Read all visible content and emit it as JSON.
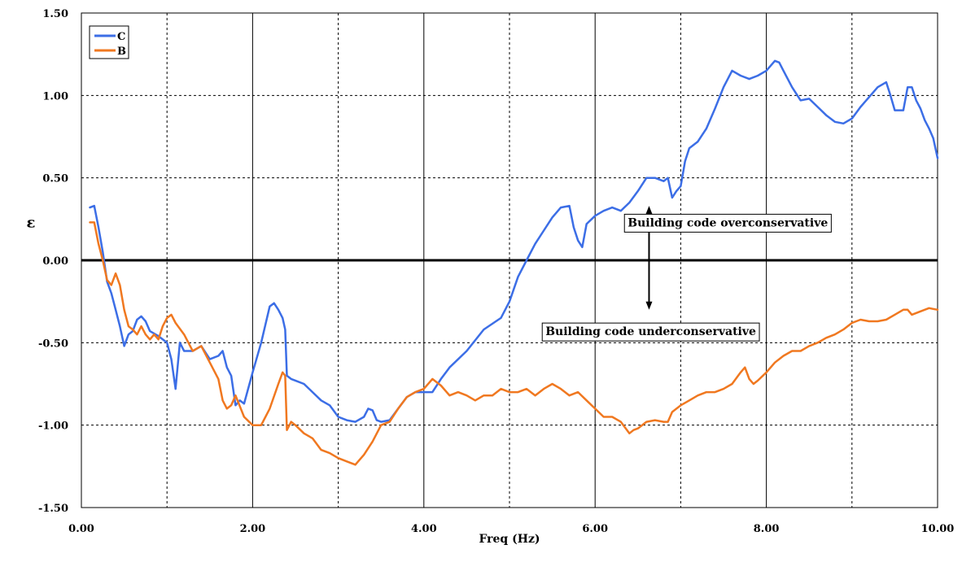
{
  "chart_data": {
    "type": "line",
    "xlabel": "Freq (Hz)",
    "ylabel": "ε",
    "xlim": [
      0,
      10
    ],
    "ylim": [
      -1.5,
      1.5
    ],
    "x_ticks": [
      0,
      1,
      2,
      3,
      4,
      5,
      6,
      7,
      8,
      9,
      10
    ],
    "x_tick_labels": [
      "0.00",
      "",
      "2.00",
      "",
      "4.00",
      "",
      "6.00",
      "",
      "8.00",
      "",
      "10.00"
    ],
    "y_ticks": [
      -1.5,
      -1.0,
      -0.5,
      0.0,
      0.5,
      1.0,
      1.5
    ],
    "y_tick_labels": [
      "-1.50",
      "-1.00",
      "-0.50",
      "0.00",
      "0.50",
      "1.00",
      "1.50"
    ],
    "grid": true,
    "legend_position": "top-left",
    "reference_line": {
      "y": 0.0,
      "color": "#000000"
    },
    "annotations": [
      {
        "text": "Building code overconservative",
        "x": 7.55,
        "y": 0.23
      },
      {
        "text": "Building code underconservative",
        "x": 6.65,
        "y": -0.43
      }
    ],
    "arrow": {
      "x": 6.63,
      "y_top": 0.33,
      "y_bottom": -0.3
    },
    "series": [
      {
        "name": "C",
        "color": "#3c6ee6",
        "x": [
          0.1,
          0.15,
          0.2,
          0.25,
          0.3,
          0.35,
          0.4,
          0.45,
          0.5,
          0.55,
          0.6,
          0.65,
          0.7,
          0.75,
          0.8,
          0.9,
          1.0,
          1.05,
          1.1,
          1.15,
          1.2,
          1.3,
          1.4,
          1.5,
          1.6,
          1.65,
          1.7,
          1.75,
          1.8,
          1.85,
          1.9,
          2.0,
          2.1,
          2.2,
          2.25,
          2.3,
          2.35,
          2.38,
          2.4,
          2.45,
          2.5,
          2.6,
          2.7,
          2.8,
          2.9,
          3.0,
          3.1,
          3.2,
          3.3,
          3.35,
          3.4,
          3.45,
          3.5,
          3.6,
          3.7,
          3.8,
          3.9,
          4.0,
          4.1,
          4.2,
          4.3,
          4.5,
          4.7,
          4.9,
          5.0,
          5.1,
          5.2,
          5.3,
          5.4,
          5.5,
          5.6,
          5.7,
          5.75,
          5.8,
          5.85,
          5.9,
          6.0,
          6.1,
          6.2,
          6.3,
          6.4,
          6.5,
          6.6,
          6.7,
          6.8,
          6.85,
          6.9,
          6.95,
          7.0,
          7.05,
          7.1,
          7.2,
          7.3,
          7.4,
          7.5,
          7.6,
          7.7,
          7.8,
          7.9,
          8.0,
          8.1,
          8.15,
          8.2,
          8.3,
          8.4,
          8.5,
          8.6,
          8.7,
          8.8,
          8.9,
          9.0,
          9.1,
          9.2,
          9.3,
          9.4,
          9.45,
          9.5,
          9.6,
          9.65,
          9.7,
          9.75,
          9.8,
          9.85,
          9.9,
          9.95,
          10.0
        ],
        "values": [
          0.32,
          0.33,
          0.2,
          0.05,
          -0.13,
          -0.2,
          -0.3,
          -0.4,
          -0.52,
          -0.45,
          -0.43,
          -0.36,
          -0.34,
          -0.37,
          -0.43,
          -0.46,
          -0.5,
          -0.6,
          -0.78,
          -0.5,
          -0.55,
          -0.55,
          -0.52,
          -0.6,
          -0.58,
          -0.55,
          -0.65,
          -0.7,
          -0.88,
          -0.85,
          -0.87,
          -0.68,
          -0.5,
          -0.28,
          -0.26,
          -0.3,
          -0.35,
          -0.42,
          -0.7,
          -0.72,
          -0.73,
          -0.75,
          -0.8,
          -0.85,
          -0.88,
          -0.95,
          -0.97,
          -0.98,
          -0.95,
          -0.9,
          -0.91,
          -0.97,
          -0.98,
          -0.97,
          -0.9,
          -0.83,
          -0.8,
          -0.8,
          -0.8,
          -0.72,
          -0.65,
          -0.55,
          -0.42,
          -0.35,
          -0.25,
          -0.1,
          0.0,
          0.1,
          0.18,
          0.26,
          0.32,
          0.33,
          0.2,
          0.12,
          0.08,
          0.22,
          0.27,
          0.3,
          0.32,
          0.3,
          0.35,
          0.42,
          0.5,
          0.5,
          0.48,
          0.5,
          0.38,
          0.42,
          0.45,
          0.6,
          0.68,
          0.72,
          0.8,
          0.92,
          1.05,
          1.15,
          1.12,
          1.1,
          1.12,
          1.15,
          1.21,
          1.2,
          1.15,
          1.05,
          0.97,
          0.98,
          0.93,
          0.88,
          0.84,
          0.83,
          0.86,
          0.93,
          0.99,
          1.05,
          1.08,
          1.0,
          0.91,
          0.91,
          1.05,
          1.05,
          0.97,
          0.92,
          0.85,
          0.8,
          0.74,
          0.62
        ]
      },
      {
        "name": "B",
        "color": "#f07820",
        "x": [
          0.1,
          0.15,
          0.2,
          0.25,
          0.3,
          0.35,
          0.4,
          0.45,
          0.5,
          0.55,
          0.6,
          0.65,
          0.7,
          0.75,
          0.8,
          0.85,
          0.9,
          0.95,
          1.0,
          1.05,
          1.1,
          1.2,
          1.3,
          1.4,
          1.5,
          1.6,
          1.65,
          1.7,
          1.75,
          1.8,
          1.9,
          2.0,
          2.1,
          2.15,
          2.2,
          2.3,
          2.35,
          2.38,
          2.4,
          2.45,
          2.5,
          2.6,
          2.7,
          2.8,
          2.9,
          3.0,
          3.1,
          3.2,
          3.3,
          3.4,
          3.5,
          3.6,
          3.7,
          3.8,
          3.9,
          4.0,
          4.1,
          4.2,
          4.3,
          4.4,
          4.5,
          4.6,
          4.7,
          4.8,
          4.9,
          5.0,
          5.1,
          5.2,
          5.3,
          5.4,
          5.5,
          5.6,
          5.7,
          5.8,
          5.9,
          6.0,
          6.1,
          6.2,
          6.3,
          6.4,
          6.45,
          6.5,
          6.6,
          6.7,
          6.8,
          6.85,
          6.9,
          7.0,
          7.1,
          7.2,
          7.3,
          7.4,
          7.5,
          7.6,
          7.7,
          7.75,
          7.8,
          7.85,
          7.9,
          8.0,
          8.1,
          8.2,
          8.3,
          8.4,
          8.5,
          8.6,
          8.7,
          8.8,
          8.9,
          9.0,
          9.1,
          9.2,
          9.3,
          9.4,
          9.5,
          9.6,
          9.65,
          9.7,
          9.8,
          9.9,
          10.0
        ],
        "values": [
          0.23,
          0.23,
          0.1,
          0.0,
          -0.12,
          -0.15,
          -0.08,
          -0.15,
          -0.3,
          -0.4,
          -0.42,
          -0.45,
          -0.4,
          -0.45,
          -0.48,
          -0.45,
          -0.48,
          -0.4,
          -0.35,
          -0.33,
          -0.38,
          -0.45,
          -0.55,
          -0.52,
          -0.62,
          -0.72,
          -0.85,
          -0.9,
          -0.88,
          -0.82,
          -0.95,
          -1.0,
          -1.0,
          -0.95,
          -0.9,
          -0.75,
          -0.68,
          -0.7,
          -1.03,
          -0.98,
          -1.0,
          -1.05,
          -1.08,
          -1.15,
          -1.17,
          -1.2,
          -1.22,
          -1.24,
          -1.18,
          -1.1,
          -1.0,
          -0.98,
          -0.9,
          -0.83,
          -0.8,
          -0.78,
          -0.72,
          -0.76,
          -0.82,
          -0.8,
          -0.82,
          -0.85,
          -0.82,
          -0.82,
          -0.78,
          -0.8,
          -0.8,
          -0.78,
          -0.82,
          -0.78,
          -0.75,
          -0.78,
          -0.82,
          -0.8,
          -0.85,
          -0.9,
          -0.95,
          -0.95,
          -0.98,
          -1.05,
          -1.03,
          -1.02,
          -0.98,
          -0.97,
          -0.98,
          -0.98,
          -0.92,
          -0.88,
          -0.85,
          -0.82,
          -0.8,
          -0.8,
          -0.78,
          -0.75,
          -0.68,
          -0.65,
          -0.72,
          -0.75,
          -0.73,
          -0.68,
          -0.62,
          -0.58,
          -0.55,
          -0.55,
          -0.52,
          -0.5,
          -0.47,
          -0.45,
          -0.42,
          -0.38,
          -0.36,
          -0.37,
          -0.37,
          -0.36,
          -0.33,
          -0.3,
          -0.3,
          -0.33,
          -0.31,
          -0.29,
          -0.3
        ]
      }
    ]
  }
}
